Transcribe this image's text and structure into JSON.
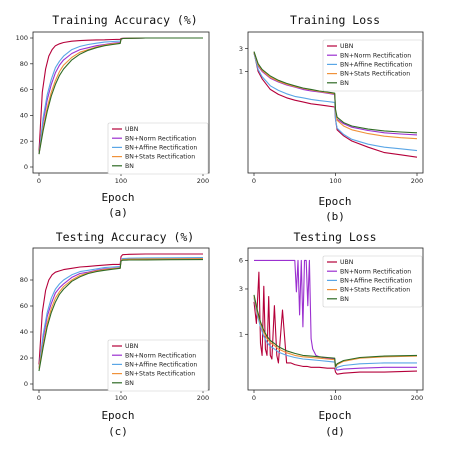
{
  "chart_data": [
    {
      "type": "line",
      "title": "Training Accuracy (%)",
      "xlabel": "Epoch",
      "caption": "(a)",
      "xlim": [
        0,
        200
      ],
      "ylim": [
        0,
        100
      ],
      "xticks": [
        0,
        100,
        200
      ],
      "yticks": [
        0,
        20,
        40,
        60,
        80,
        100
      ],
      "legend": "bottom-right",
      "series": [
        {
          "name": "UBN",
          "color": "#b5003a",
          "x": [
            0,
            4,
            8,
            12,
            16,
            20,
            25,
            30,
            40,
            50,
            60,
            70,
            80,
            90,
            99,
            100,
            102,
            110,
            130,
            160,
            200
          ],
          "y": [
            12,
            58,
            76,
            86,
            91,
            94,
            95.5,
            96.5,
            97.5,
            98,
            98.3,
            98.5,
            98.6,
            98.8,
            99,
            99.5,
            99.8,
            99.9,
            100,
            100,
            100
          ]
        },
        {
          "name": "BN+Norm Rectification",
          "color": "#9b30d0",
          "x": [
            0,
            5,
            10,
            15,
            20,
            25,
            30,
            40,
            50,
            60,
            70,
            80,
            90,
            99,
            100,
            102,
            110,
            130,
            160,
            200
          ],
          "y": [
            10,
            35,
            52,
            64,
            73,
            79,
            83,
            88,
            91,
            92.5,
            94,
            95,
            96,
            96.5,
            99,
            99.6,
            99.8,
            100,
            100,
            100
          ]
        },
        {
          "name": "BN+Affine Rectification",
          "color": "#5aa6e6",
          "x": [
            0,
            5,
            10,
            15,
            20,
            25,
            30,
            40,
            50,
            60,
            70,
            80,
            90,
            99,
            100,
            102,
            110,
            130,
            160,
            200
          ],
          "y": [
            10,
            38,
            56,
            68,
            77,
            82,
            86,
            91,
            93.5,
            95,
            96,
            96.8,
            97.3,
            97.6,
            99,
            99.6,
            99.8,
            100,
            100,
            100
          ]
        },
        {
          "name": "BN+Stats Rectification",
          "color": "#f0923a",
          "x": [
            0,
            5,
            10,
            15,
            20,
            25,
            30,
            40,
            50,
            60,
            70,
            80,
            90,
            99,
            100,
            102,
            110,
            130,
            160,
            200
          ],
          "y": [
            10,
            30,
            46,
            58,
            67,
            74,
            79,
            85,
            89,
            91,
            93,
            94.5,
            95.5,
            96,
            99,
            99.6,
            99.8,
            100,
            100,
            100
          ]
        },
        {
          "name": "BN",
          "color": "#2f6b25",
          "x": [
            0,
            5,
            10,
            15,
            20,
            25,
            30,
            40,
            50,
            60,
            70,
            80,
            90,
            99,
            100,
            102,
            110,
            130,
            160,
            200
          ],
          "y": [
            10,
            28,
            43,
            55,
            64,
            71,
            76,
            83,
            87.5,
            90.5,
            92.5,
            94,
            95,
            95.8,
            99,
            99.6,
            99.8,
            100,
            100,
            100
          ]
        }
      ]
    },
    {
      "type": "line",
      "title": "Training Loss",
      "xlabel": "Epoch",
      "caption": "(b)",
      "xlim": [
        0,
        200
      ],
      "ylim": [
        0.01,
        5
      ],
      "yscale": "log",
      "xticks": [
        0,
        100,
        200
      ],
      "yticks": [
        1,
        3
      ],
      "legend": "top-right",
      "series": [
        {
          "name": "UBN",
          "color": "#b5003a",
          "x": [
            0,
            5,
            10,
            20,
            30,
            40,
            50,
            60,
            70,
            80,
            90,
            99,
            100,
            102,
            110,
            120,
            140,
            160,
            180,
            200
          ],
          "y": [
            2.5,
            1.0,
            0.7,
            0.42,
            0.33,
            0.28,
            0.25,
            0.23,
            0.21,
            0.2,
            0.19,
            0.18,
            0.1,
            0.06,
            0.045,
            0.035,
            0.026,
            0.02,
            0.018,
            0.016
          ]
        },
        {
          "name": "BN+Norm Rectification",
          "color": "#9b30d0",
          "x": [
            0,
            5,
            10,
            20,
            30,
            40,
            50,
            60,
            70,
            80,
            90,
            99,
            100,
            102,
            110,
            120,
            140,
            160,
            180,
            200
          ],
          "y": [
            2.4,
            1.3,
            1.0,
            0.72,
            0.6,
            0.52,
            0.47,
            0.42,
            0.39,
            0.37,
            0.35,
            0.33,
            0.15,
            0.1,
            0.08,
            0.068,
            0.058,
            0.052,
            0.049,
            0.047
          ]
        },
        {
          "name": "BN+Affine Rectification",
          "color": "#5aa6e6",
          "x": [
            0,
            5,
            10,
            20,
            30,
            40,
            50,
            60,
            70,
            80,
            90,
            99,
            100,
            102,
            110,
            120,
            140,
            160,
            180,
            200
          ],
          "y": [
            2.4,
            1.1,
            0.78,
            0.5,
            0.4,
            0.34,
            0.3,
            0.28,
            0.26,
            0.245,
            0.235,
            0.225,
            0.1,
            0.065,
            0.048,
            0.038,
            0.03,
            0.026,
            0.024,
            0.022
          ]
        },
        {
          "name": "BN+Stats Rectification",
          "color": "#f0923a",
          "x": [
            0,
            5,
            10,
            20,
            30,
            40,
            50,
            60,
            70,
            80,
            90,
            99,
            100,
            102,
            110,
            120,
            140,
            160,
            180,
            200
          ],
          "y": [
            2.5,
            1.35,
            1.05,
            0.75,
            0.62,
            0.54,
            0.48,
            0.44,
            0.41,
            0.38,
            0.36,
            0.34,
            0.15,
            0.095,
            0.072,
            0.06,
            0.05,
            0.044,
            0.041,
            0.039
          ]
        },
        {
          "name": "BN",
          "color": "#2f6b25",
          "x": [
            0,
            5,
            10,
            20,
            30,
            40,
            50,
            60,
            70,
            80,
            90,
            99,
            100,
            102,
            110,
            120,
            140,
            160,
            180,
            200
          ],
          "y": [
            2.6,
            1.45,
            1.1,
            0.8,
            0.65,
            0.56,
            0.5,
            0.45,
            0.42,
            0.39,
            0.37,
            0.35,
            0.16,
            0.11,
            0.085,
            0.072,
            0.062,
            0.057,
            0.054,
            0.052
          ]
        }
      ]
    },
    {
      "type": "line",
      "title": "Testing Accuracy (%)",
      "xlabel": "Epoch",
      "caption": "(c)",
      "xlim": [
        0,
        200
      ],
      "ylim": [
        0,
        100
      ],
      "xticks": [
        0,
        100,
        200
      ],
      "yticks": [
        0,
        20,
        40,
        60,
        80
      ],
      "legend": "bottom-right",
      "series": [
        {
          "name": "UBN",
          "color": "#b5003a",
          "x": [
            0,
            4,
            8,
            12,
            16,
            20,
            25,
            30,
            40,
            50,
            60,
            70,
            80,
            90,
            99,
            100,
            102,
            110,
            130,
            160,
            200
          ],
          "y": [
            15,
            55,
            72,
            80,
            84,
            86,
            87,
            88,
            89,
            90,
            90.5,
            91,
            91.5,
            92,
            92,
            98,
            99.5,
            99.8,
            100,
            100,
            100
          ]
        },
        {
          "name": "BN+Norm Rectification",
          "color": "#9b30d0",
          "x": [
            0,
            5,
            10,
            15,
            20,
            25,
            30,
            40,
            50,
            60,
            70,
            80,
            90,
            99,
            100,
            102,
            110,
            130,
            160,
            200
          ],
          "y": [
            12,
            35,
            52,
            62,
            70,
            74,
            77,
            82,
            85,
            86,
            87.5,
            88.5,
            89,
            89.5,
            95,
            96,
            96.3,
            96.5,
            96.6,
            96.8
          ]
        },
        {
          "name": "BN+Affine Rectification",
          "color": "#5aa6e6",
          "x": [
            0,
            5,
            10,
            15,
            20,
            25,
            30,
            40,
            50,
            60,
            70,
            80,
            90,
            99,
            100,
            102,
            110,
            130,
            160,
            200
          ],
          "y": [
            12,
            38,
            55,
            66,
            73,
            77,
            80,
            84,
            86.5,
            87.5,
            88.5,
            89.5,
            90,
            90.5,
            95.5,
            96.5,
            96.8,
            97,
            97.1,
            97.2
          ]
        },
        {
          "name": "BN+Stats Rectification",
          "color": "#f0923a",
          "x": [
            0,
            5,
            10,
            15,
            20,
            25,
            30,
            40,
            50,
            60,
            70,
            80,
            90,
            99,
            100,
            102,
            110,
            130,
            160,
            200
          ],
          "y": [
            12,
            30,
            47,
            58,
            66,
            71,
            75,
            80,
            83.5,
            85.5,
            87,
            88,
            88.8,
            89.3,
            95,
            95.8,
            96,
            96.2,
            96.3,
            96.4
          ]
        },
        {
          "name": "BN",
          "color": "#2f6b25",
          "x": [
            0,
            5,
            10,
            15,
            20,
            25,
            30,
            40,
            50,
            60,
            70,
            80,
            90,
            99,
            100,
            102,
            110,
            130,
            160,
            200
          ],
          "y": [
            10,
            28,
            44,
            55,
            63,
            69,
            73,
            79,
            82.5,
            85,
            86.5,
            87.5,
            88.3,
            89,
            94.5,
            95.2,
            95.4,
            95.5,
            95.6,
            95.7
          ]
        }
      ]
    },
    {
      "type": "line",
      "title": "Testing Loss",
      "xlabel": "Epoch",
      "caption": "(d)",
      "xlim": [
        0,
        200
      ],
      "ylim": [
        0.3,
        7
      ],
      "yscale": "log",
      "xticks": [
        0,
        100,
        200
      ],
      "yticks": [
        1,
        3,
        6
      ],
      "legend": "top-right",
      "series": [
        {
          "name": "UBN",
          "color": "#b5003a",
          "x": [
            0,
            3,
            6,
            8,
            10,
            12,
            14,
            16,
            18,
            20,
            22,
            25,
            28,
            30,
            35,
            40,
            45,
            50,
            55,
            60,
            65,
            70,
            75,
            80,
            90,
            99,
            100,
            102,
            110,
            130,
            160,
            200
          ],
          "y": [
            2.2,
            1.3,
            4.5,
            0.8,
            0.6,
            3.2,
            0.7,
            0.6,
            2.5,
            0.6,
            0.55,
            2.0,
            0.6,
            0.5,
            1.8,
            0.5,
            0.5,
            0.48,
            0.47,
            0.46,
            0.46,
            0.45,
            0.45,
            0.45,
            0.44,
            0.44,
            0.4,
            0.38,
            0.39,
            0.4,
            0.4,
            0.41
          ]
        },
        {
          "name": "BN+Norm Rectification",
          "color": "#9b30d0",
          "x": [
            0,
            1,
            10,
            20,
            30,
            40,
            50,
            52,
            54,
            56,
            58,
            60,
            62,
            64,
            66,
            68,
            70,
            72,
            74,
            76,
            80,
            90,
            99,
            100,
            102,
            110,
            130,
            160,
            200
          ],
          "y": [
            6,
            6,
            6,
            6,
            6,
            6,
            6,
            2.8,
            6,
            1.6,
            6,
            1.2,
            6,
            6,
            2.0,
            6,
            0.9,
            0.7,
            0.65,
            0.6,
            0.58,
            0.56,
            0.55,
            0.45,
            0.42,
            0.43,
            0.44,
            0.45,
            0.45
          ]
        },
        {
          "name": "BN+Affine Rectification",
          "color": "#5aa6e6",
          "x": [
            0,
            4,
            8,
            12,
            16,
            20,
            25,
            30,
            40,
            50,
            60,
            70,
            80,
            90,
            99,
            100,
            102,
            110,
            130,
            160,
            200
          ],
          "y": [
            2.4,
            1.6,
            1.2,
            0.95,
            0.82,
            0.75,
            0.7,
            0.65,
            0.6,
            0.57,
            0.55,
            0.54,
            0.53,
            0.52,
            0.51,
            0.43,
            0.45,
            0.47,
            0.49,
            0.5,
            0.5
          ]
        },
        {
          "name": "BN+Stats Rectification",
          "color": "#f0923a",
          "x": [
            0,
            4,
            8,
            12,
            16,
            20,
            25,
            30,
            40,
            50,
            60,
            70,
            80,
            90,
            99,
            100,
            102,
            110,
            130,
            160,
            200
          ],
          "y": [
            2.5,
            1.7,
            1.3,
            1.05,
            0.9,
            0.82,
            0.76,
            0.7,
            0.64,
            0.6,
            0.58,
            0.57,
            0.56,
            0.55,
            0.54,
            0.45,
            0.48,
            0.52,
            0.56,
            0.58,
            0.59
          ]
        },
        {
          "name": "BN",
          "color": "#2f6b25",
          "x": [
            0,
            4,
            8,
            12,
            16,
            20,
            25,
            30,
            40,
            50,
            60,
            70,
            80,
            90,
            99,
            100,
            102,
            110,
            130,
            160,
            200
          ],
          "y": [
            2.6,
            1.8,
            1.35,
            1.1,
            0.95,
            0.86,
            0.8,
            0.74,
            0.67,
            0.63,
            0.6,
            0.59,
            0.58,
            0.57,
            0.56,
            0.46,
            0.49,
            0.53,
            0.57,
            0.59,
            0.6
          ]
        }
      ]
    }
  ]
}
